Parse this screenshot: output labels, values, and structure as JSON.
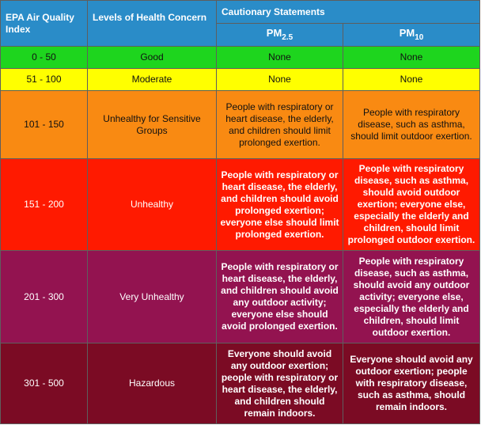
{
  "header": {
    "index_label": "EPA Air Quality Index",
    "concern_label": "Levels of Health Concern",
    "statements_label": "Cautionary Statements",
    "pm25_base": "PM",
    "pm25_sub": "2.5",
    "pm10_base": "PM",
    "pm10_sub": "10"
  },
  "colors": {
    "header": "#2a8cc8",
    "good": "#1ed51e",
    "moderate": "#ffff00",
    "usg": "#f98a12",
    "unhealthy": "#ff1a00",
    "very_unhealthy": "#931350",
    "hazardous": "#7b0b24"
  },
  "rows": [
    {
      "range": "0 - 50",
      "level": "Good",
      "pm25": "None",
      "pm10": "None"
    },
    {
      "range": "51 - 100",
      "level": "Moderate",
      "pm25": "None",
      "pm10": "None"
    },
    {
      "range": "101 - 150",
      "level": "Unhealthy for Sensitive Groups",
      "pm25": "People with respiratory or heart disease, the elderly, and children should limit prolonged exertion.",
      "pm10": "People with respiratory disease, such as asthma, should limit outdoor exertion."
    },
    {
      "range": "151 - 200",
      "level": "Unhealthy",
      "pm25": "People with respiratory or heart disease, the elderly, and children should avoid prolonged exertion; everyone else should limit prolonged exertion.",
      "pm10": "People with respiratory disease, such as asthma, should avoid outdoor exertion; everyone else, especially the elderly and children, should limit prolonged outdoor exertion."
    },
    {
      "range": "201 - 300",
      "level": "Very Unhealthy",
      "pm25": "People with respiratory or heart disease, the elderly, and children should avoid any outdoor activity; everyone else should avoid prolonged exertion.",
      "pm10": "People with respiratory disease, such as asthma, should avoid any outdoor activity; everyone else, especially the elderly and children, should limit outdoor exertion."
    },
    {
      "range": "301 - 500",
      "level": "Hazardous",
      "pm25": "Everyone should avoid any outdoor exertion; people with respiratory or heart disease, the elderly, and children should remain indoors.",
      "pm10": "Everyone should avoid any outdoor exertion; people with respiratory disease, such as asthma, should remain indoors."
    }
  ]
}
